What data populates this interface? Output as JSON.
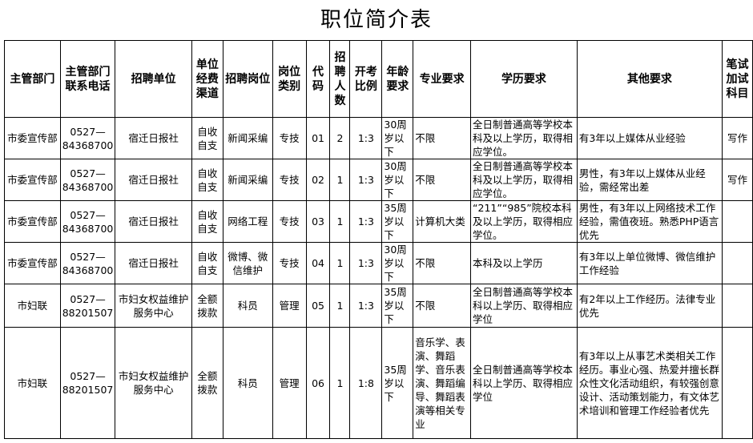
{
  "title": "职位简介表",
  "headers": [
    "主管部门",
    "主管部门联系电话",
    "招聘单位",
    "单位经费渠道",
    "招聘岗位",
    "岗位类别",
    "代码",
    "招聘人数",
    "开考比例",
    "年龄要求",
    "专业要求",
    "学历要求",
    "其他要求",
    "笔试加试科目"
  ],
  "rows": [
    [
      "市委宣传部",
      "0527—84368700",
      "宿迁日报社",
      "自收自支",
      "新闻采编",
      "专技",
      "01",
      "2",
      "1:3",
      "30周岁以下",
      "不限",
      "全日制普通高等学校本科及以上学历，取得相应学位。",
      "有3年以上媒体从业经验",
      "写作"
    ],
    [
      "市委宣传部",
      "0527—84368700",
      "宿迁日报社",
      "自收自支",
      "新闻采编",
      "专技",
      "02",
      "1",
      "1:3",
      "30周岁以下",
      "不限",
      "全日制普通高等学校本科及以上学历，取得相应学位。",
      "男性，有3年以上媒体从业经验，需经常出差",
      "写作"
    ],
    [
      "市委宣传部",
      "0527—84368700",
      "宿迁日报社",
      "自收自支",
      "网络工程",
      "专技",
      "03",
      "1",
      "1:3",
      "35周岁以下",
      "计算机大类",
      "“211”“985”院校本科及以上学历，取得相应学位。",
      "男性，有3年以上网络技术工作经验，需值夜班。熟悉PHP语言优先",
      ""
    ],
    [
      "市委宣传部",
      "0527—84368700",
      "宿迁日报社",
      "自收自支",
      "微博、微信维护",
      "专技",
      "04",
      "1",
      "1:3",
      "30周岁以下",
      "不限",
      "本科及以上学历",
      "有3年以上单位微博、微信维护工作经验",
      ""
    ],
    [
      "市妇联",
      "0527—88201507",
      "市妇女权益维护服务中心",
      "全额拨款",
      "科员",
      "管理",
      "05",
      "1",
      "1:3",
      "35周岁以下",
      "不限",
      "全日制普通高等学校本科以上学历、取得相应学位",
      "有2年以上工作经历。法律专业优先",
      ""
    ],
    [
      "市妇联",
      "0527—88201507",
      "市妇女权益维护服务中心",
      "全额拨款",
      "科员",
      "管理",
      "06",
      "1",
      "1:8",
      "35周岁以下",
      "音乐学、表演、舞蹈学、音乐表演、舞蹈编导、舞蹈表演等相关专业",
      "全日制普通高等学校本科以上学历、取得相应学位",
      "有3年以上从事艺术类相关工作经历。事业心强、热爱并擅长群众性文化活动组织，有较强创意设计、活动策划能力，有文体艺术培训和管理工作经验者优先",
      ""
    ]
  ]
}
